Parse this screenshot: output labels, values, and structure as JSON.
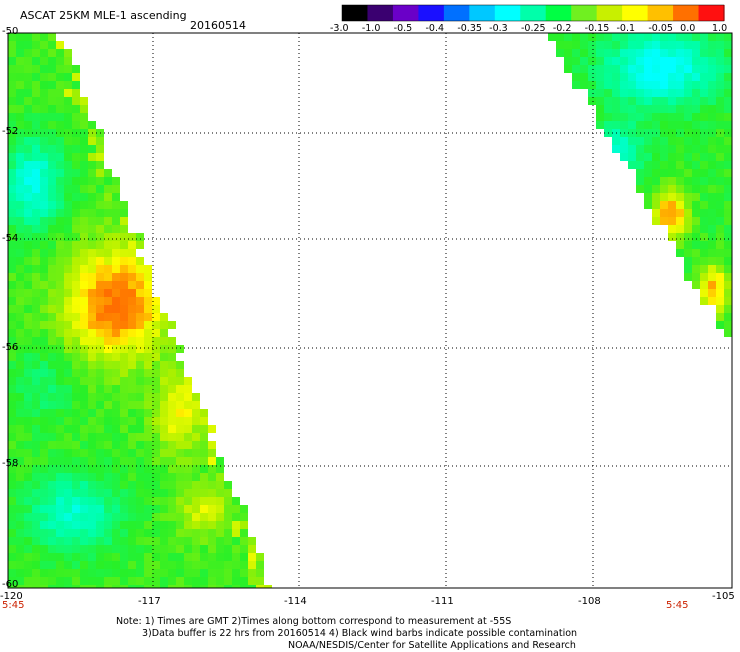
{
  "header": {
    "title": "ASCAT 25KM MLE-1 ascending",
    "date": "20160514"
  },
  "colorbar": {
    "labels": [
      "-3.0",
      "-1.0",
      "-0.5",
      "-0.4",
      "-0.35",
      "-0.3",
      "-0.25",
      "-0.2",
      "-0.15",
      "-0.1",
      "-0.05",
      "0.0",
      "1.0"
    ],
    "colors": [
      "#000000",
      "#3a0070",
      "#6a00c8",
      "#1a10ff",
      "#0070ff",
      "#00c8ff",
      "#00ffff",
      "#00ffaa",
      "#00ff44",
      "#70f020",
      "#c8f000",
      "#ffff00",
      "#ffc000",
      "#ff7000",
      "#ff1010"
    ]
  },
  "axes": {
    "lon_labels": [
      "-120",
      "-117",
      "-114",
      "-111",
      "-108",
      "-105"
    ],
    "lat_labels": [
      "-50",
      "-52",
      "-54",
      "-56",
      "-58",
      "-60"
    ],
    "time_left": "5:45",
    "time_right": "5:45"
  },
  "notes": {
    "line1": "Note: 1) Times are GMT 2)Times along bottom correspond to measurement at -55S",
    "line2": "3)Data buffer is 22 hrs from 20160514 4) Black wind barbs indicate possible contamination",
    "line3": "NOAA/NESDIS/Center for Satellite Applications and Research"
  }
}
